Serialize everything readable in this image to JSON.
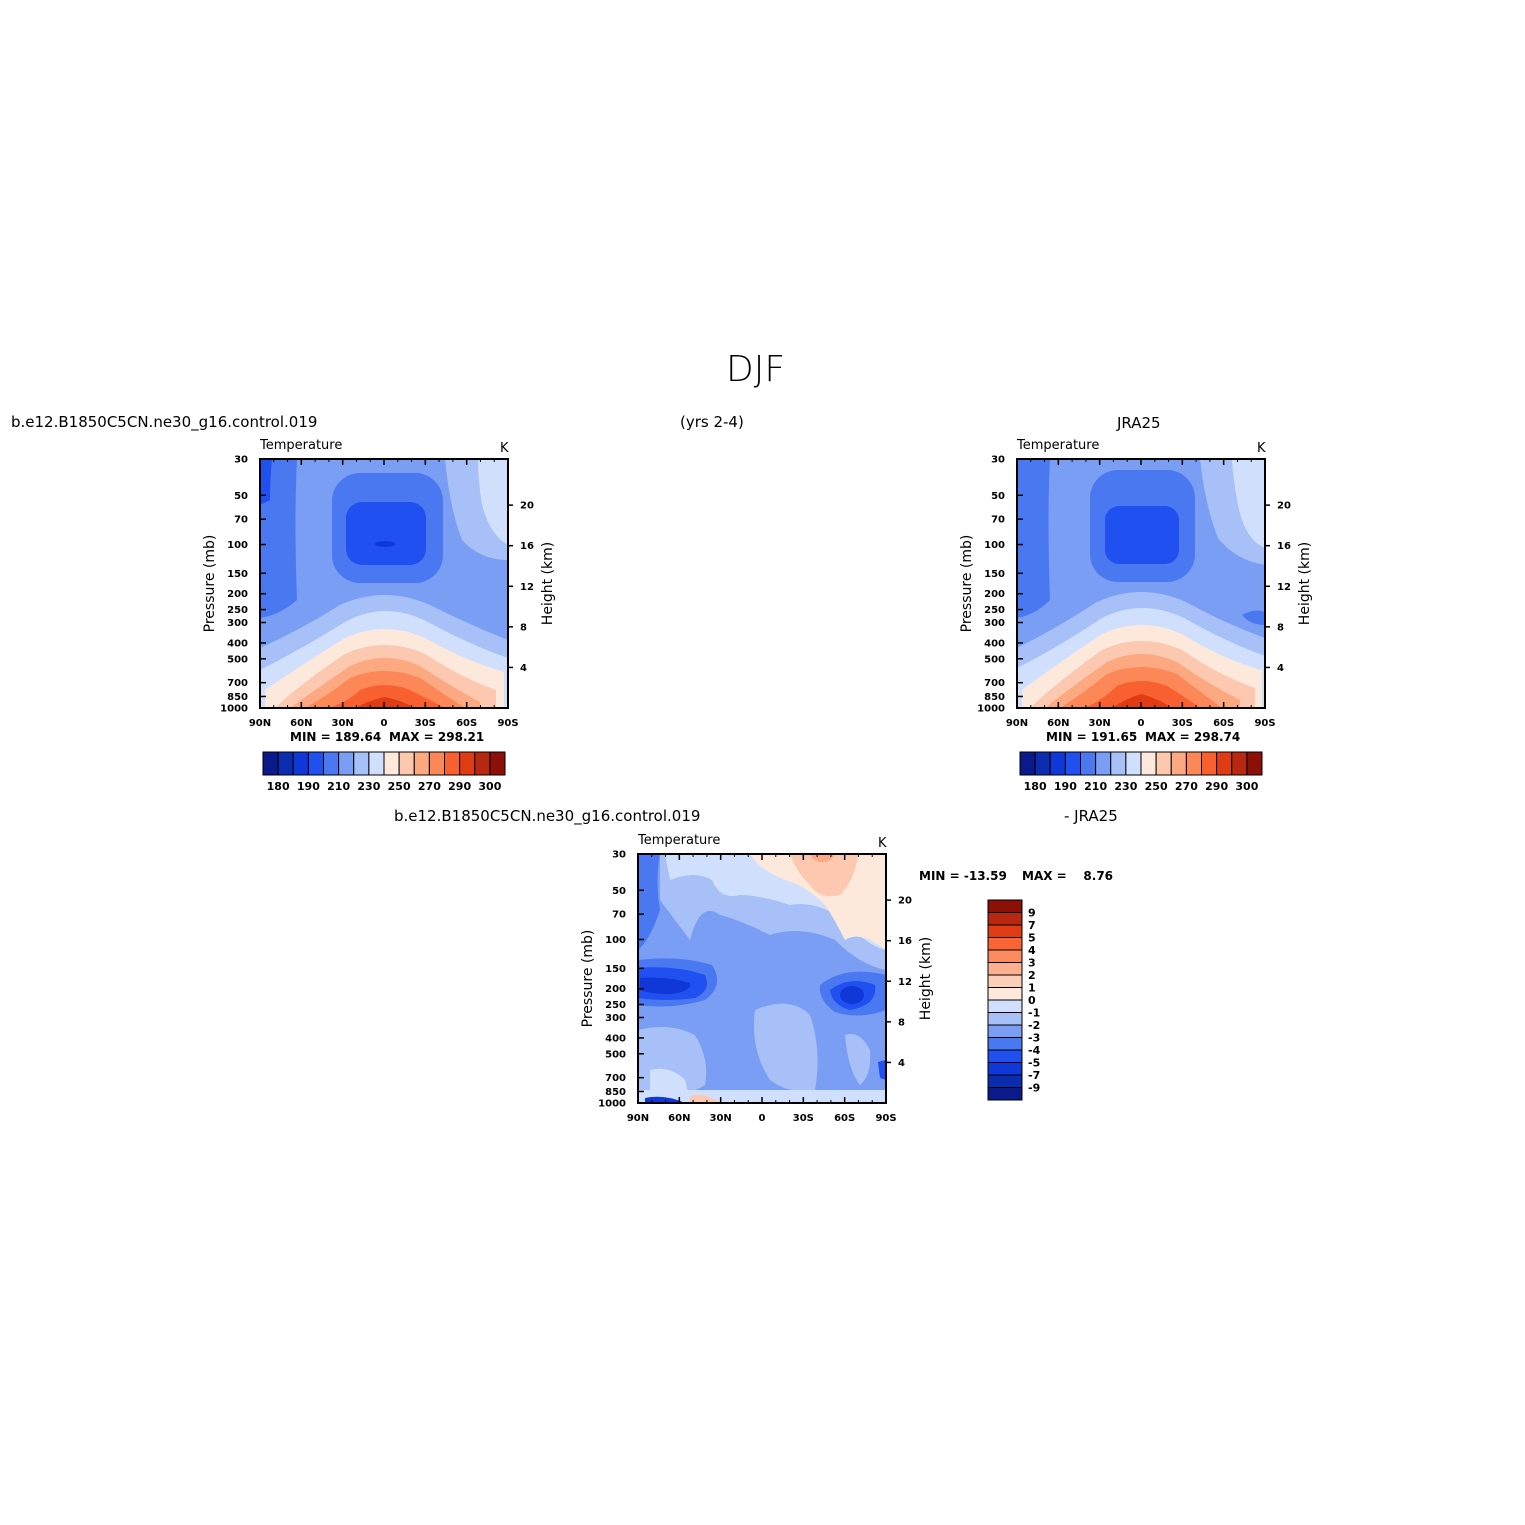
{
  "figure": {
    "title": "DJF",
    "model_case": "b.e12.B1850C5CN.ne30_g16.control.019",
    "years": "(yrs 2-4)",
    "obs_name": "JRA25",
    "diff_case": "b.e12.B1850C5CN.ne30_g16.control.019",
    "diff_suffix": "- JRA25"
  },
  "colors": {
    "scale": [
      "#0a1a8a",
      "#0c2cb0",
      "#1038d8",
      "#2050f0",
      "#4a78f0",
      "#7a9ef4",
      "#a8c0f8",
      "#d0e0fc",
      "#fde8dc",
      "#fcc8b0",
      "#fca880",
      "#fc8858",
      "#f86030",
      "#e03c14",
      "#b82810",
      "#8a1008"
    ],
    "diff_scale": [
      "#0a1a8a",
      "#0c2cb0",
      "#1038d8",
      "#2050f0",
      "#4a78f0",
      "#7a9ef4",
      "#a8c0f8",
      "#d0e0fc",
      "#fde8dc",
      "#fcd0b8",
      "#fcb090",
      "#fc8c60",
      "#f86434",
      "#e03c14",
      "#b82810",
      "#8a1008"
    ]
  },
  "chart_data": [
    {
      "type": "contour",
      "id": "model",
      "panel_title": "Temperature",
      "units": "K",
      "ylabel": "Pressure (mb)",
      "y2label": "Height (km)",
      "x_ticks": [
        "90N",
        "60N",
        "30N",
        "0",
        "30S",
        "60S",
        "90S"
      ],
      "y_ticks": [
        30,
        50,
        70,
        100,
        150,
        200,
        250,
        300,
        400,
        500,
        700,
        850,
        1000
      ],
      "y2_ticks": [
        4,
        8,
        12,
        16,
        20
      ],
      "min_text": "MIN = 189.64",
      "max_text": "MAX = 298.21",
      "colorbar_labels": [
        "180",
        "190",
        "210",
        "230",
        "250",
        "270",
        "290",
        "300"
      ]
    },
    {
      "type": "contour",
      "id": "obs",
      "panel_title": "Temperature",
      "units": "K",
      "ylabel": "Pressure (mb)",
      "y2label": "Height (km)",
      "x_ticks": [
        "90N",
        "60N",
        "30N",
        "0",
        "30S",
        "60S",
        "90S"
      ],
      "y_ticks": [
        30,
        50,
        70,
        100,
        150,
        200,
        250,
        300,
        400,
        500,
        700,
        850,
        1000
      ],
      "y2_ticks": [
        4,
        8,
        12,
        16,
        20
      ],
      "min_text": "MIN = 191.65",
      "max_text": "MAX = 298.74",
      "colorbar_labels": [
        "180",
        "190",
        "210",
        "230",
        "250",
        "270",
        "290",
        "300"
      ]
    },
    {
      "type": "contour",
      "id": "diff",
      "panel_title": "Temperature",
      "units": "K",
      "ylabel": "Pressure (mb)",
      "y2label": "Height (km)",
      "x_ticks": [
        "90N",
        "60N",
        "30N",
        "0",
        "30S",
        "60S",
        "90S"
      ],
      "y_ticks": [
        30,
        50,
        70,
        100,
        150,
        200,
        250,
        300,
        400,
        500,
        700,
        850,
        1000
      ],
      "y2_ticks": [
        4,
        8,
        12,
        16,
        20
      ],
      "min_text": "MIN = -13.59",
      "max_text": "MAX =    8.76",
      "colorbar_labels": [
        "9",
        "7",
        "5",
        "4",
        "3",
        "2",
        "1",
        "0",
        "-1",
        "-2",
        "-3",
        "-4",
        "-5",
        "-7",
        "-9"
      ]
    }
  ]
}
